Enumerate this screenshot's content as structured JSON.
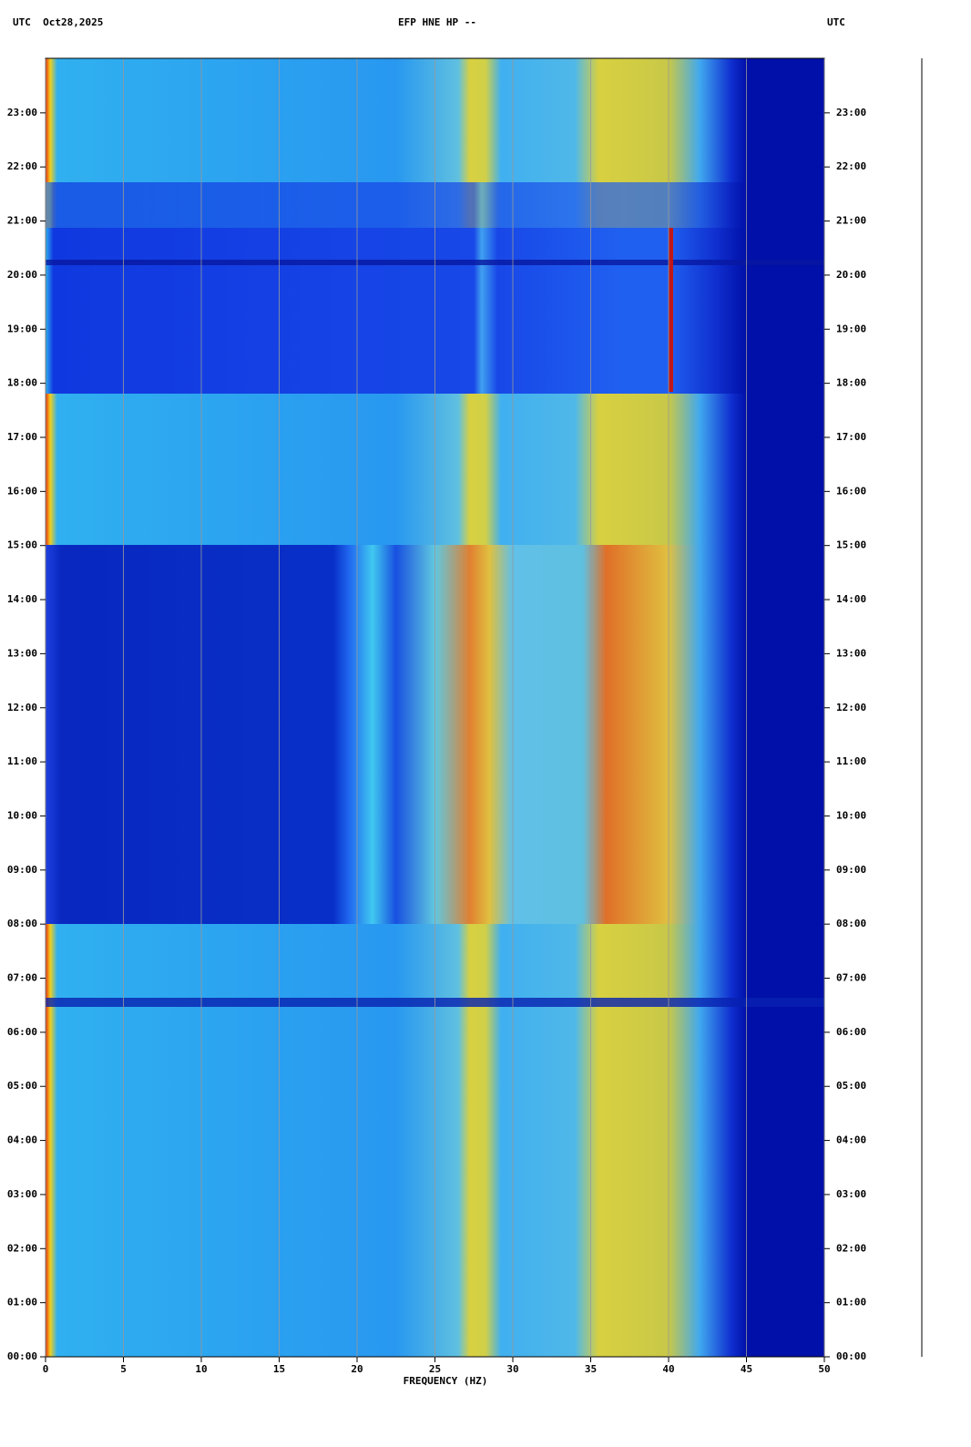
{
  "chart_data": {
    "type": "spectrogram",
    "title": "EFP HNE HP --",
    "left_header": "UTC  Oct28,2025",
    "right_header": "UTC",
    "xlabel": "FREQUENCY (HZ)",
    "xlim": [
      0,
      50
    ],
    "xticks": [
      0,
      5,
      10,
      15,
      20,
      25,
      30,
      35,
      40,
      45,
      50
    ],
    "ylim": [
      0,
      24
    ],
    "yticks": [
      {
        "value": 0,
        "label": "00:00"
      },
      {
        "value": 1,
        "label": "01:00"
      },
      {
        "value": 2,
        "label": "02:00"
      },
      {
        "value": 3,
        "label": "03:00"
      },
      {
        "value": 4,
        "label": "04:00"
      },
      {
        "value": 5,
        "label": "05:00"
      },
      {
        "value": 6,
        "label": "06:00"
      },
      {
        "value": 7,
        "label": "07:00"
      },
      {
        "value": 8,
        "label": "08:00"
      },
      {
        "value": 9,
        "label": "09:00"
      },
      {
        "value": 10,
        "label": "10:00"
      },
      {
        "value": 11,
        "label": "11:00"
      },
      {
        "value": 12,
        "label": "12:00"
      },
      {
        "value": 13,
        "label": "13:00"
      },
      {
        "value": 14,
        "label": "14:00"
      },
      {
        "value": 15,
        "label": "15:00"
      },
      {
        "value": 16,
        "label": "16:00"
      },
      {
        "value": 17,
        "label": "17:00"
      },
      {
        "value": 18,
        "label": "18:00"
      },
      {
        "value": 19,
        "label": "19:00"
      },
      {
        "value": 20,
        "label": "20:00"
      },
      {
        "value": 21,
        "label": "21:00"
      },
      {
        "value": 22,
        "label": "22:00"
      },
      {
        "value": 23,
        "label": "23:00"
      }
    ],
    "grid": true
  }
}
